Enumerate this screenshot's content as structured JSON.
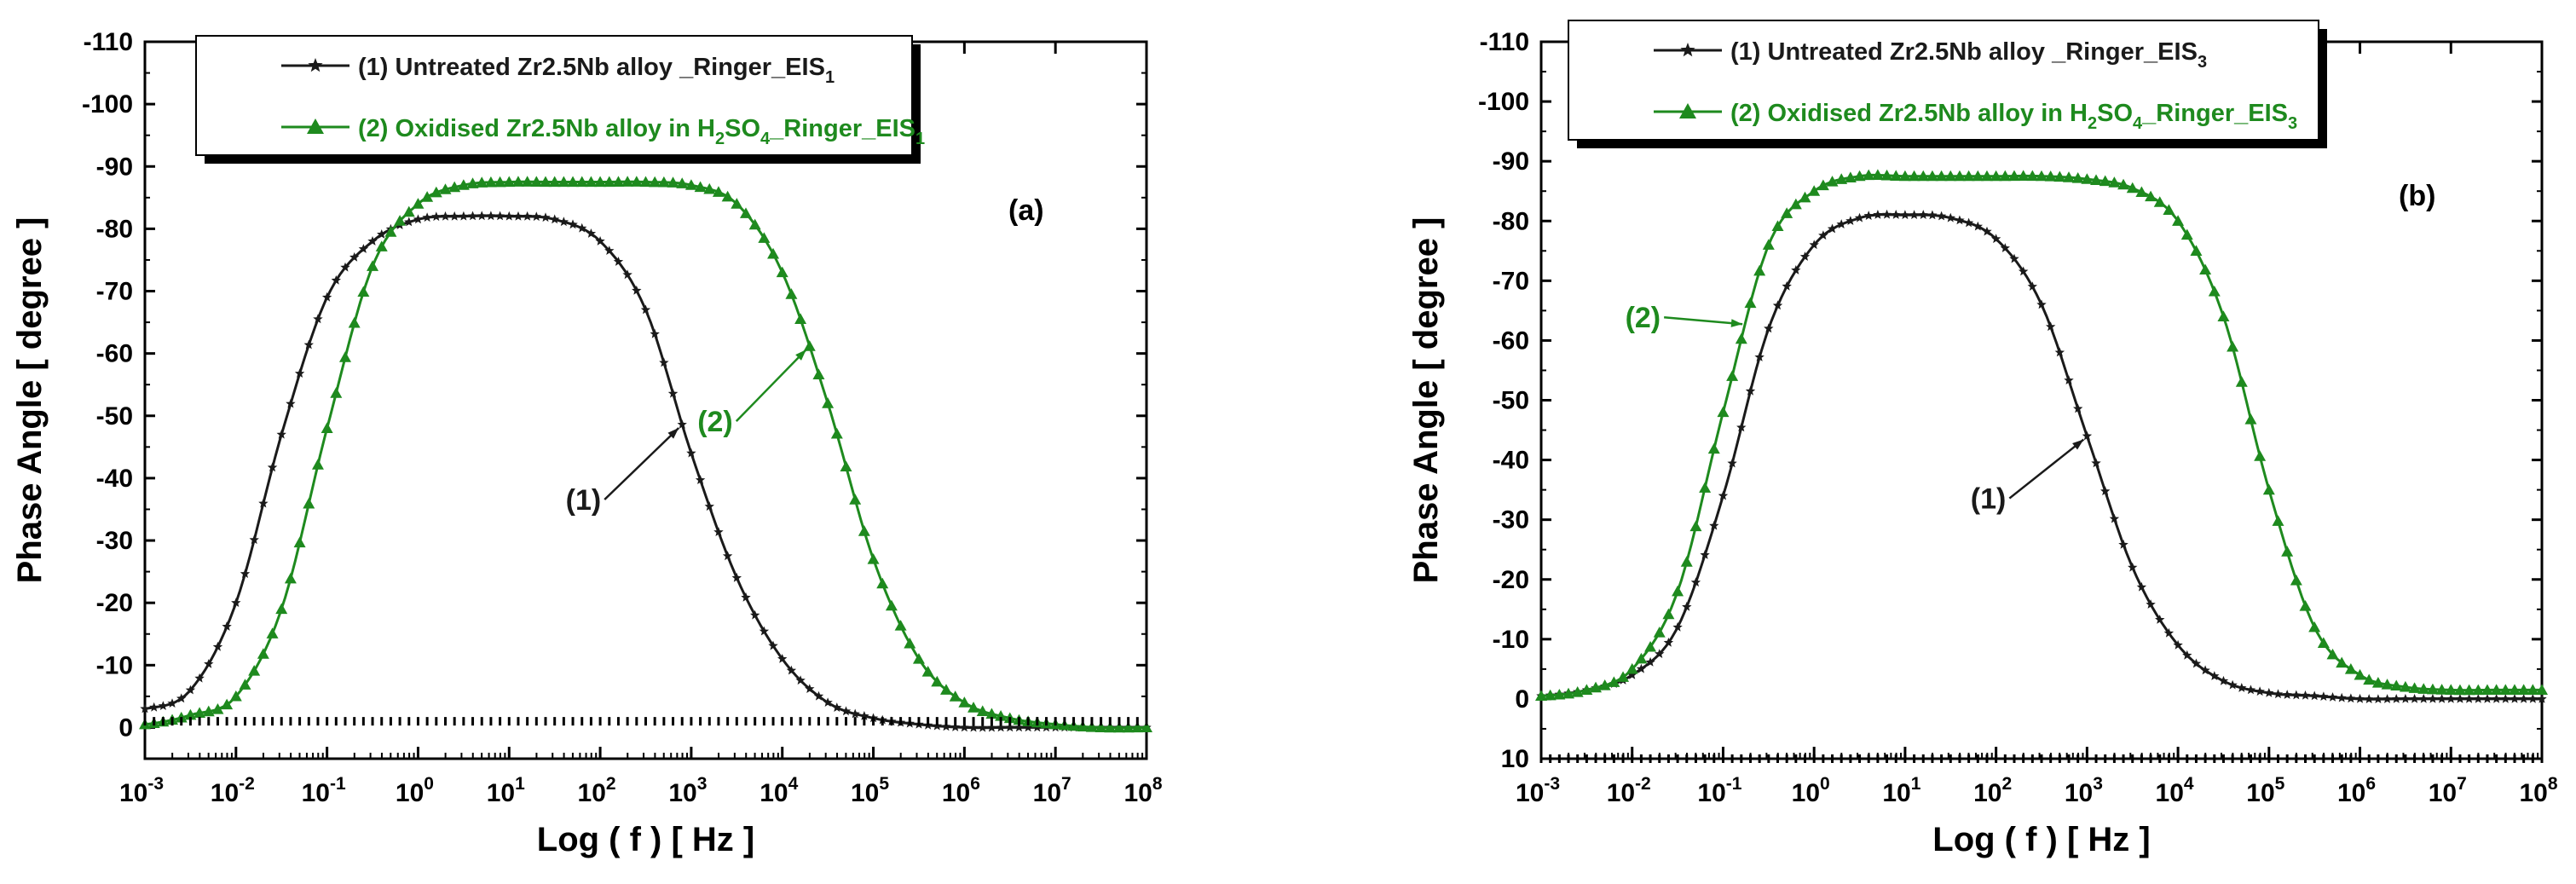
{
  "colors": {
    "series1": "#1a1a1a",
    "series2": "#1e8a1e",
    "axis": "#000000",
    "shadow": "#000000"
  },
  "chart_data": [
    {
      "type": "line",
      "panel_label": "(a)",
      "xlabel": "Log ( f ) [ Hz ]",
      "ylabel": "Phase Angle [ degree ]",
      "x_scale": "log",
      "xlim": [
        0.001,
        100000000
      ],
      "ylim": [
        5,
        -110
      ],
      "x_tick_labels": [
        {
          "base": "10",
          "exp": "-3"
        },
        {
          "base": "10",
          "exp": "-2"
        },
        {
          "base": "10",
          "exp": "-1"
        },
        {
          "base": "10",
          "exp": "0"
        },
        {
          "base": "10",
          "exp": "1"
        },
        {
          "base": "10",
          "exp": "2"
        },
        {
          "base": "10",
          "exp": "3"
        },
        {
          "base": "10",
          "exp": "4"
        },
        {
          "base": "10",
          "exp": "5"
        },
        {
          "base": "10",
          "exp": "6"
        },
        {
          "base": "10",
          "exp": "7"
        },
        {
          "base": "10",
          "exp": "8"
        }
      ],
      "y_ticks": [
        0,
        -10,
        -20,
        -30,
        -40,
        -50,
        -60,
        -70,
        -80,
        -90,
        -100,
        -110
      ],
      "legend": {
        "placement": "top-center",
        "entries": [
          {
            "prefix": "(1) Untreated Zr2.5Nb alloy _Ringer_EIS",
            "sub": "1",
            "suffix": ""
          },
          {
            "prefix": "(2) Oxidised Zr2.5Nb alloy in H",
            "sub": "2",
            "mid": "SO",
            "sub2": "4",
            "suffix": "_Ringer_EIS",
            "sub3": "1"
          }
        ]
      },
      "series": [
        {
          "name": "(1) Untreated Zr2.5Nb alloy _Ringer_EIS1",
          "marker": "star",
          "x_log": [
            -3,
            -2.5,
            -2,
            -1.5,
            -1,
            -0.5,
            0,
            0.5,
            1,
            1.5,
            2,
            2.5,
            3,
            3.5,
            4,
            4.5,
            5,
            5.5,
            6,
            6.5,
            7,
            7.5,
            8
          ],
          "values": [
            -3,
            -6,
            -20,
            -47,
            -69,
            -78,
            -81.5,
            -82,
            -82,
            -81.5,
            -78,
            -67,
            -44,
            -24,
            -11,
            -4,
            -1.5,
            -0.5,
            0,
            0,
            0,
            0,
            0
          ]
        },
        {
          "name": "(2) Oxidised Zr2.5Nb alloy in H2SO4_Ringer_EIS1",
          "marker": "triangle",
          "x_log": [
            -3,
            -2.5,
            -2,
            -1.5,
            -1,
            -0.5,
            0,
            0.5,
            1,
            1.5,
            2,
            2.5,
            3,
            3.5,
            4,
            4.5,
            5,
            5.5,
            6,
            6.5,
            7,
            7.5,
            8
          ],
          "values": [
            -0.5,
            -2,
            -5,
            -19,
            -48,
            -74,
            -84,
            -87,
            -87.5,
            -87.5,
            -87.5,
            -87.5,
            -87,
            -84,
            -73,
            -52,
            -27,
            -11,
            -4,
            -1.5,
            -0.5,
            0,
            0
          ]
        }
      ],
      "annotations": [
        {
          "text": "(1)",
          "series": 0,
          "x_log": 2.9
        },
        {
          "text": "(2)",
          "series": 1,
          "x_log": 4.3
        }
      ]
    },
    {
      "type": "line",
      "panel_label": "(b)",
      "xlabel": "Log ( f ) [ Hz ]",
      "ylabel": "Phase Angle [ degree ]",
      "x_scale": "log",
      "xlim": [
        0.001,
        100000000
      ],
      "ylim": [
        10,
        -110
      ],
      "x_tick_labels": [
        {
          "base": "10",
          "exp": "-3"
        },
        {
          "base": "10",
          "exp": "-2"
        },
        {
          "base": "10",
          "exp": "-1"
        },
        {
          "base": "10",
          "exp": "0"
        },
        {
          "base": "10",
          "exp": "1"
        },
        {
          "base": "10",
          "exp": "2"
        },
        {
          "base": "10",
          "exp": "3"
        },
        {
          "base": "10",
          "exp": "4"
        },
        {
          "base": "10",
          "exp": "5"
        },
        {
          "base": "10",
          "exp": "6"
        },
        {
          "base": "10",
          "exp": "7"
        },
        {
          "base": "10",
          "exp": "8"
        }
      ],
      "y_ticks": [
        10,
        0,
        -10,
        -20,
        -30,
        -40,
        -50,
        -60,
        -70,
        -80,
        -90,
        -100,
        -110
      ],
      "legend": {
        "placement": "top-center",
        "entries": [
          {
            "prefix": "(1) Untreated Zr2.5Nb alloy _Ringer_EIS",
            "sub": "3",
            "suffix": ""
          },
          {
            "prefix": "(2) Oxidised Zr2.5Nb alloy in H",
            "sub": "2",
            "mid": "SO",
            "sub2": "4",
            "suffix": "_Ringer_EIS",
            "sub3": "3"
          }
        ]
      },
      "series": [
        {
          "name": "(1) Untreated Zr2.5Nb alloy _Ringer_EIS3",
          "marker": "star",
          "x_log": [
            -3,
            -2.5,
            -2,
            -1.5,
            -1,
            -0.5,
            0,
            0.5,
            1,
            1.5,
            2,
            2.5,
            3,
            3.5,
            4,
            4.5,
            5,
            5.5,
            6,
            6.5,
            7,
            7.5,
            8
          ],
          "values": [
            -0.5,
            -1.5,
            -4,
            -12,
            -34,
            -62,
            -76,
            -80.5,
            -81,
            -80.5,
            -77,
            -66,
            -44,
            -22,
            -9,
            -3,
            -1,
            -0.5,
            0,
            0,
            0,
            0,
            0
          ]
        },
        {
          "name": "(2) Oxidised Zr2.5Nb alloy in H2SO4_Ringer_EIS3",
          "marker": "triangle",
          "x_log": [
            -3,
            -2.5,
            -2,
            -1.5,
            -1,
            -0.5,
            0,
            0.5,
            1,
            1.5,
            2,
            2.5,
            3,
            3.5,
            4,
            4.5,
            5,
            5.5,
            6,
            6.5,
            7,
            7.5,
            8
          ],
          "values": [
            -0.5,
            -1.5,
            -5,
            -18,
            -48,
            -76,
            -85,
            -87.5,
            -87.5,
            -87.5,
            -87.5,
            -87.5,
            -87,
            -85.5,
            -80,
            -64,
            -35,
            -12,
            -4,
            -2,
            -1.5,
            -1.5,
            -1.5
          ]
        }
      ],
      "annotations": [
        {
          "text": "(2)",
          "series": 1,
          "x_log": -0.75
        },
        {
          "text": "(1)",
          "series": 0,
          "x_log": 3.0
        }
      ]
    }
  ]
}
